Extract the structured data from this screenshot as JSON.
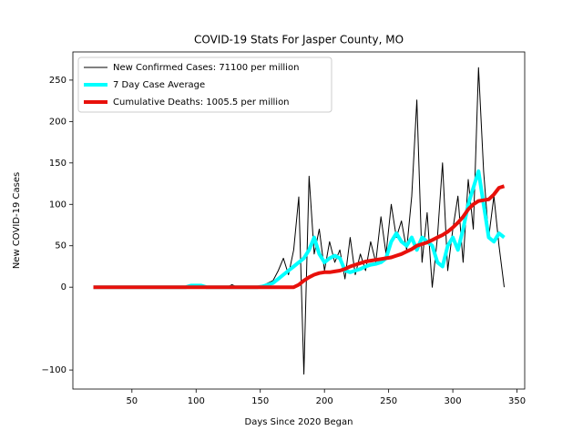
{
  "chart_data": {
    "type": "line",
    "title": "COVID-19 Stats For Jasper County, MO",
    "xlabel": "Days Since 2020 Began",
    "ylabel": "New COVID-19 Cases",
    "legend": "upper left",
    "xlim": [
      4,
      356
    ],
    "ylim": [
      -123,
      284
    ],
    "xticks": [
      50,
      100,
      150,
      200,
      250,
      300,
      350
    ],
    "yticks": [
      {
        "value": -100,
        "label": "−100"
      },
      0,
      50,
      100,
      150,
      200,
      250
    ],
    "x": [
      20,
      24,
      28,
      32,
      36,
      40,
      44,
      48,
      52,
      56,
      60,
      64,
      68,
      72,
      76,
      80,
      84,
      88,
      92,
      96,
      100,
      104,
      108,
      112,
      116,
      120,
      124,
      128,
      132,
      136,
      140,
      144,
      148,
      152,
      156,
      160,
      164,
      168,
      172,
      176,
      180,
      184,
      188,
      192,
      196,
      200,
      204,
      208,
      212,
      216,
      220,
      224,
      228,
      232,
      236,
      240,
      244,
      248,
      252,
      256,
      260,
      264,
      268,
      272,
      276,
      280,
      284,
      288,
      292,
      296,
      300,
      304,
      308,
      312,
      316,
      320,
      324,
      328,
      332,
      336,
      340
    ],
    "series": [
      {
        "name": "New Confirmed Cases: 71100 per million",
        "color": "#000000",
        "width": 1,
        "values": [
          0,
          0,
          0,
          0,
          0,
          0,
          0,
          0,
          0,
          0,
          0,
          0,
          0,
          0,
          0,
          0,
          0,
          0,
          0,
          2,
          3,
          1,
          0,
          0,
          0,
          0,
          0,
          3,
          0,
          0,
          0,
          0,
          0,
          2,
          5,
          8,
          20,
          35,
          15,
          45,
          109,
          -105,
          134,
          40,
          70,
          20,
          55,
          30,
          45,
          10,
          60,
          15,
          40,
          20,
          55,
          30,
          85,
          40,
          100,
          60,
          80,
          45,
          110,
          226,
          30,
          90,
          0,
          60,
          150,
          20,
          70,
          110,
          30,
          130,
          70,
          265,
          140,
          60,
          110,
          50,
          0
        ]
      },
      {
        "name": "7 Day Case Average",
        "color": "#00ffff",
        "width": 4,
        "values": [
          0,
          0,
          0,
          0,
          0,
          0,
          0,
          0,
          0,
          0,
          0,
          0,
          0,
          0,
          0,
          0,
          0,
          0,
          0,
          2,
          2,
          2,
          0,
          0,
          0,
          0,
          0,
          0,
          0,
          0,
          0,
          0,
          0,
          1,
          3,
          5,
          10,
          15,
          20,
          25,
          30,
          35,
          45,
          60,
          40,
          30,
          35,
          38,
          35,
          20,
          18,
          20,
          22,
          25,
          27,
          28,
          30,
          35,
          55,
          65,
          55,
          50,
          60,
          45,
          60,
          55,
          50,
          30,
          25,
          50,
          60,
          45,
          70,
          100,
          120,
          140,
          100,
          60,
          55,
          65,
          60
        ]
      },
      {
        "name": "Cumulative Deaths: 1005.5 per million",
        "color": "#e8100b",
        "width": 4,
        "values": [
          0,
          0,
          0,
          0,
          0,
          0,
          0,
          0,
          0,
          0,
          0,
          0,
          0,
          0,
          0,
          0,
          0,
          0,
          0,
          0,
          0,
          0,
          0,
          0,
          0,
          0,
          0,
          0,
          0,
          0,
          0,
          0,
          0,
          0,
          0,
          0,
          0,
          0,
          0,
          0,
          3,
          8,
          12,
          15,
          17,
          18,
          18,
          19,
          20,
          22,
          25,
          27,
          29,
          31,
          32,
          33,
          34,
          35,
          36,
          38,
          40,
          43,
          46,
          50,
          52,
          54,
          57,
          60,
          63,
          67,
          72,
          78,
          85,
          94,
          100,
          104,
          105,
          106,
          112,
          120,
          122
        ]
      }
    ]
  }
}
